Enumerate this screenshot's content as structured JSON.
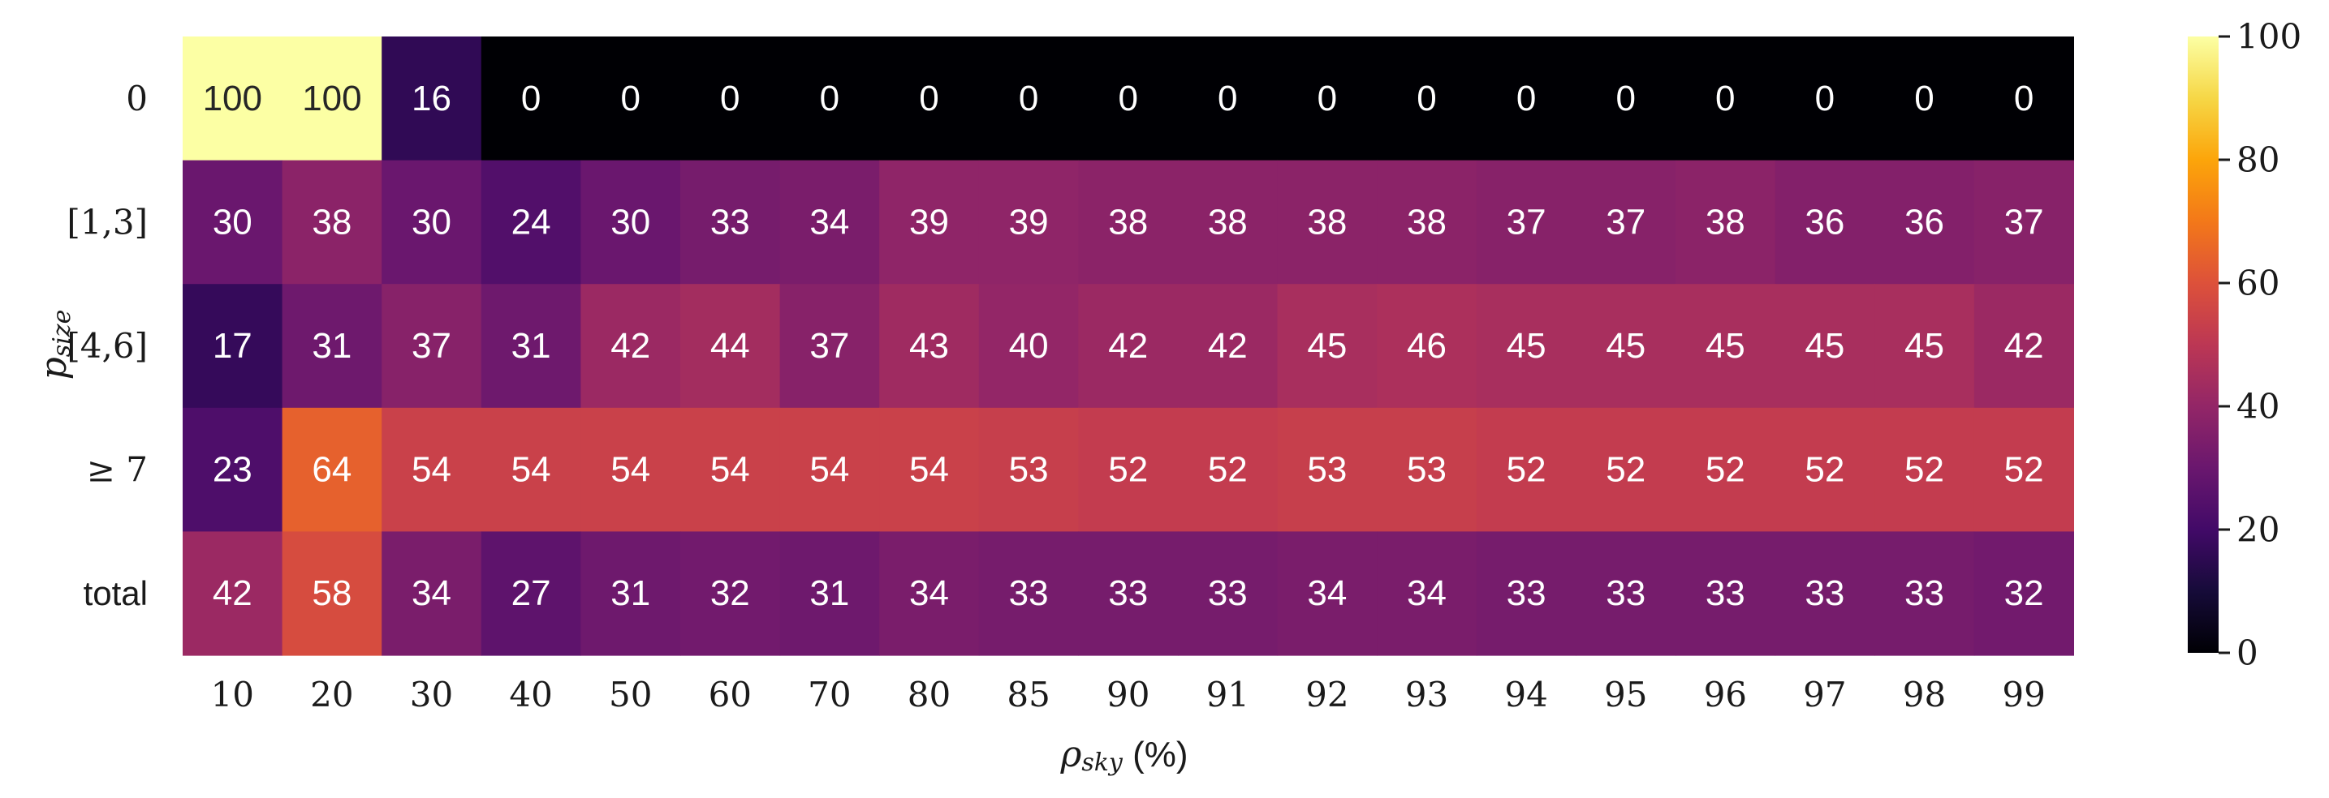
{
  "chart_data": {
    "type": "heatmap",
    "colormap": "inferno",
    "xlabel": "ρsky (%)",
    "ylabel": "psize",
    "x_categories": [
      "10",
      "20",
      "30",
      "40",
      "50",
      "60",
      "70",
      "80",
      "85",
      "90",
      "91",
      "92",
      "93",
      "94",
      "95",
      "96",
      "97",
      "98",
      "99"
    ],
    "y_categories": [
      "0",
      "[1,3]",
      "[4,6]",
      "≥ 7",
      "total"
    ],
    "values": [
      [
        100,
        100,
        16,
        0,
        0,
        0,
        0,
        0,
        0,
        0,
        0,
        0,
        0,
        0,
        0,
        0,
        0,
        0,
        0
      ],
      [
        30,
        38,
        30,
        24,
        30,
        33,
        34,
        39,
        39,
        38,
        38,
        38,
        38,
        37,
        37,
        38,
        36,
        36,
        37
      ],
      [
        17,
        31,
        37,
        31,
        42,
        44,
        37,
        43,
        40,
        42,
        42,
        45,
        46,
        45,
        45,
        45,
        45,
        45,
        42
      ],
      [
        23,
        64,
        54,
        54,
        54,
        54,
        54,
        54,
        53,
        52,
        52,
        53,
        53,
        52,
        52,
        52,
        52,
        52,
        52
      ],
      [
        42,
        58,
        34,
        27,
        31,
        32,
        31,
        34,
        33,
        33,
        33,
        34,
        34,
        33,
        33,
        33,
        33,
        33,
        32
      ]
    ],
    "colorbar": {
      "range": [
        0,
        100
      ],
      "ticks": [
        "0",
        "20",
        "40",
        "60",
        "80",
        "100"
      ]
    }
  }
}
